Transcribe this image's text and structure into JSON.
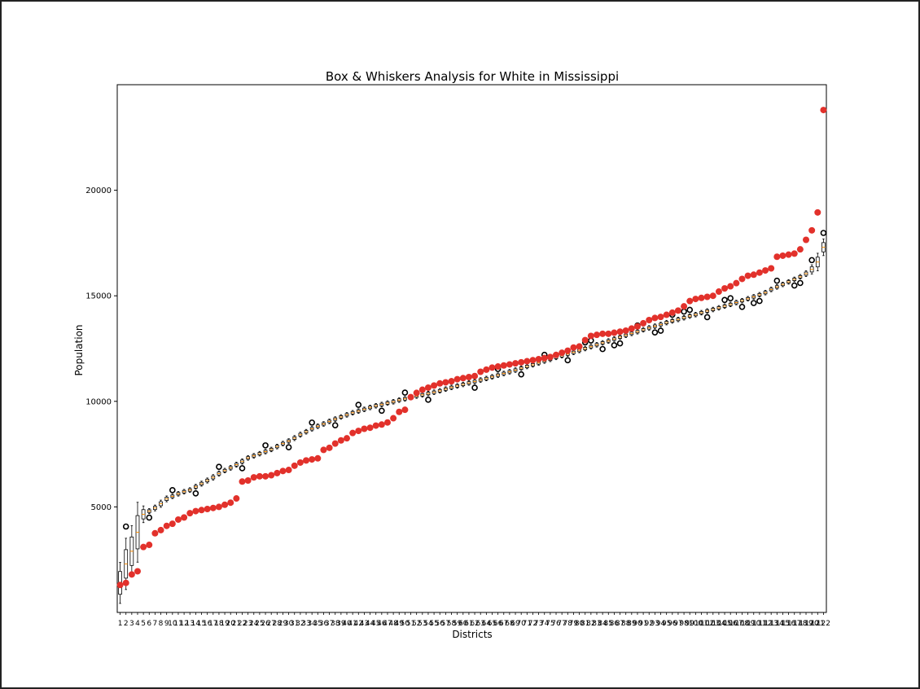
{
  "chart_data": {
    "type": "box",
    "title": "Box & Whiskers Analysis for White in Mississippi",
    "xlabel": "Districts",
    "ylabel": "Population",
    "xlim": [
      0.5,
      122.5
    ],
    "ylim": [
      0,
      25000
    ],
    "yticks": [
      5000,
      10000,
      15000,
      20000
    ],
    "district_count": 122,
    "grid": false,
    "box_medians": [
      1400,
      2300,
      2900,
      3800,
      4650,
      4800,
      4950,
      5150,
      5380,
      5500,
      5620,
      5720,
      5800,
      5950,
      6100,
      6250,
      6400,
      6580,
      6720,
      6850,
      7000,
      7150,
      7320,
      7420,
      7520,
      7620,
      7720,
      7860,
      8000,
      8120,
      8260,
      8420,
      8560,
      8700,
      8820,
      8930,
      9050,
      9160,
      9260,
      9360,
      9460,
      9540,
      9620,
      9710,
      9790,
      9850,
      9920,
      9980,
      10060,
      10120,
      10190,
      10250,
      10310,
      10370,
      10430,
      10500,
      10580,
      10660,
      10730,
      10800,
      10870,
      10940,
      11010,
      11080,
      11160,
      11240,
      11320,
      11400,
      11480,
      11570,
      11650,
      11730,
      11820,
      11910,
      11990,
      12080,
      12160,
      12240,
      12320,
      12410,
      12500,
      12590,
      12680,
      12770,
      12860,
      12950,
      13040,
      13130,
      13220,
      13300,
      13390,
      13480,
      13560,
      13640,
      13730,
      13810,
      13880,
      13960,
      14040,
      14110,
      14200,
      14280,
      14350,
      14430,
      14510,
      14590,
      14680,
      14770,
      14860,
      14950,
      15050,
      15150,
      15300,
      15420,
      15540,
      15660,
      15780,
      15900,
      16050,
      16250,
      16600,
      17300
    ],
    "mean_points": [
      1300,
      1400,
      1800,
      1950,
      3100,
      3200,
      3750,
      3900,
      4100,
      4200,
      4400,
      4500,
      4700,
      4800,
      4850,
      4900,
      4950,
      5000,
      5100,
      5200,
      5400,
      6200,
      6250,
      6400,
      6450,
      6450,
      6500,
      6600,
      6700,
      6750,
      6950,
      7100,
      7200,
      7250,
      7300,
      7700,
      7800,
      8000,
      8150,
      8250,
      8500,
      8600,
      8700,
      8750,
      8850,
      8900,
      9000,
      9200,
      9500,
      9600,
      10200,
      10400,
      10550,
      10650,
      10750,
      10850,
      10900,
      10950,
      11050,
      11100,
      11150,
      11200,
      11400,
      11500,
      11600,
      11650,
      11700,
      11750,
      11800,
      11850,
      11900,
      11950,
      12000,
      12050,
      12100,
      12200,
      12300,
      12400,
      12550,
      12600,
      12900,
      13100,
      13150,
      13200,
      13200,
      13250,
      13300,
      13350,
      13450,
      13550,
      13700,
      13850,
      13950,
      14000,
      14100,
      14200,
      14300,
      14500,
      14750,
      14850,
      14900,
      14950,
      15000,
      15200,
      15350,
      15450,
      15600,
      15800,
      15950,
      16000,
      16100,
      16200,
      16300,
      16850,
      16900,
      16950,
      17000,
      17200,
      17650,
      18100,
      18950,
      23800
    ]
  },
  "colors": {
    "mean_marker": "#e2312b",
    "box_edge": "#000000",
    "median_line": "#ff8c00",
    "outlier_edge": "#000000",
    "axes_edge": "#000000",
    "background": "#ffffff"
  }
}
